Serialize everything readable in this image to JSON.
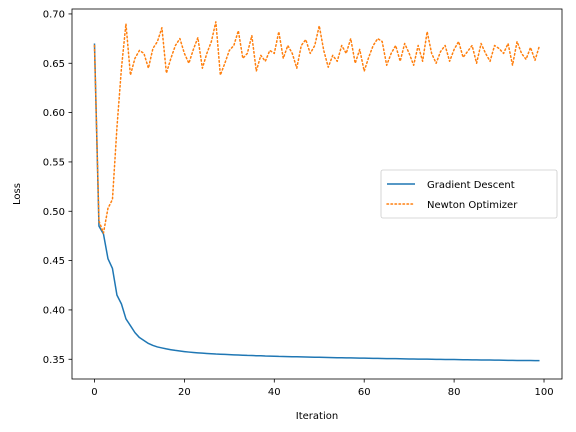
{
  "chart_data": {
    "type": "line",
    "title": "",
    "xlabel": "Iteration",
    "ylabel": "Loss",
    "xlim": [
      -5,
      104
    ],
    "ylim": [
      0.33,
      0.705
    ],
    "xticks": [
      0,
      20,
      40,
      60,
      80,
      100
    ],
    "xtick_labels": [
      "0",
      "20",
      "40",
      "60",
      "80",
      "100"
    ],
    "yticks": [
      0.35,
      0.4,
      0.45,
      0.5,
      0.55,
      0.6,
      0.65,
      0.7
    ],
    "ytick_labels": [
      "0.35",
      "0.40",
      "0.45",
      "0.50",
      "0.55",
      "0.60",
      "0.65",
      "0.70"
    ],
    "grid": false,
    "legend_position": "center-right",
    "series": [
      {
        "name": "Gradient Descent",
        "color": "#1f77b4",
        "style": "solid",
        "x": [
          0,
          1,
          2,
          3,
          4,
          5,
          6,
          7,
          8,
          9,
          10,
          11,
          12,
          13,
          14,
          15,
          16,
          17,
          18,
          19,
          20,
          21,
          22,
          23,
          24,
          25,
          26,
          27,
          28,
          29,
          30,
          31,
          32,
          33,
          34,
          35,
          36,
          37,
          38,
          39,
          40,
          41,
          42,
          43,
          44,
          45,
          46,
          47,
          48,
          49,
          50,
          51,
          52,
          53,
          54,
          55,
          56,
          57,
          58,
          59,
          60,
          61,
          62,
          63,
          64,
          65,
          66,
          67,
          68,
          69,
          70,
          71,
          72,
          73,
          74,
          75,
          76,
          77,
          78,
          79,
          80,
          81,
          82,
          83,
          84,
          85,
          86,
          87,
          88,
          89,
          90,
          91,
          92,
          93,
          94,
          95,
          96,
          97,
          98,
          99
        ],
        "y": [
          0.67,
          0.485,
          0.477,
          0.452,
          0.442,
          0.415,
          0.406,
          0.391,
          0.384,
          0.377,
          0.372,
          0.369,
          0.366,
          0.364,
          0.3625,
          0.3615,
          0.3605,
          0.3597,
          0.359,
          0.3584,
          0.3578,
          0.3573,
          0.3569,
          0.3565,
          0.3562,
          0.3559,
          0.3556,
          0.3553,
          0.3551,
          0.3549,
          0.3547,
          0.3545,
          0.3543,
          0.3541,
          0.3539,
          0.3538,
          0.3536,
          0.3535,
          0.3533,
          0.3532,
          0.3531,
          0.3529,
          0.3528,
          0.3527,
          0.3526,
          0.3525,
          0.3524,
          0.3523,
          0.3522,
          0.3521,
          0.352,
          0.3519,
          0.3518,
          0.3517,
          0.3516,
          0.3515,
          0.3514,
          0.3514,
          0.3513,
          0.3512,
          0.3511,
          0.351,
          0.3509,
          0.3509,
          0.3508,
          0.3507,
          0.3506,
          0.3506,
          0.3505,
          0.3504,
          0.3503,
          0.3503,
          0.3502,
          0.3501,
          0.3501,
          0.35,
          0.3499,
          0.3499,
          0.3498,
          0.3497,
          0.3497,
          0.3496,
          0.3495,
          0.3495,
          0.3494,
          0.3494,
          0.3493,
          0.3492,
          0.3492,
          0.3491,
          0.3491,
          0.349,
          0.3489,
          0.3489,
          0.3488,
          0.3488,
          0.3487,
          0.3487,
          0.3486,
          0.3486
        ]
      },
      {
        "name": "Newton Optimizer",
        "color": "#ff7f0e",
        "style": "dotted",
        "x": [
          0,
          1,
          2,
          3,
          4,
          5,
          6,
          7,
          8,
          9,
          10,
          11,
          12,
          13,
          14,
          15,
          16,
          17,
          18,
          19,
          20,
          21,
          22,
          23,
          24,
          25,
          26,
          27,
          28,
          29,
          30,
          31,
          32,
          33,
          34,
          35,
          36,
          37,
          38,
          39,
          40,
          41,
          42,
          43,
          44,
          45,
          46,
          47,
          48,
          49,
          50,
          51,
          52,
          53,
          54,
          55,
          56,
          57,
          58,
          59,
          60,
          61,
          62,
          63,
          64,
          65,
          66,
          67,
          68,
          69,
          70,
          71,
          72,
          73,
          74,
          75,
          76,
          77,
          78,
          79,
          80,
          81,
          82,
          83,
          84,
          85,
          86,
          87,
          88,
          89,
          90,
          91,
          92,
          93,
          94,
          95,
          96,
          97,
          98,
          99
        ],
        "y": [
          0.668,
          0.49,
          0.478,
          0.503,
          0.512,
          0.585,
          0.645,
          0.69,
          0.638,
          0.655,
          0.663,
          0.66,
          0.645,
          0.665,
          0.672,
          0.686,
          0.64,
          0.655,
          0.668,
          0.675,
          0.66,
          0.65,
          0.664,
          0.676,
          0.645,
          0.66,
          0.672,
          0.692,
          0.638,
          0.65,
          0.663,
          0.668,
          0.683,
          0.655,
          0.66,
          0.678,
          0.642,
          0.658,
          0.652,
          0.663,
          0.66,
          0.682,
          0.655,
          0.668,
          0.66,
          0.645,
          0.668,
          0.674,
          0.66,
          0.668,
          0.688,
          0.663,
          0.646,
          0.658,
          0.652,
          0.668,
          0.66,
          0.675,
          0.65,
          0.664,
          0.642,
          0.656,
          0.668,
          0.675,
          0.672,
          0.648,
          0.66,
          0.668,
          0.652,
          0.67,
          0.66,
          0.648,
          0.668,
          0.652,
          0.682,
          0.66,
          0.65,
          0.662,
          0.668,
          0.652,
          0.664,
          0.672,
          0.656,
          0.662,
          0.668,
          0.65,
          0.67,
          0.66,
          0.652,
          0.668,
          0.665,
          0.66,
          0.67,
          0.648,
          0.672,
          0.66,
          0.654,
          0.666,
          0.653,
          0.668
        ]
      }
    ]
  }
}
